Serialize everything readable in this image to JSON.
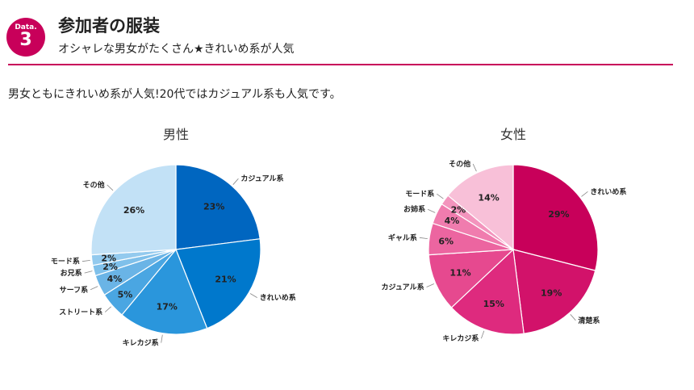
{
  "header": {
    "badge_label": "Data.",
    "badge_number": "3",
    "title": "参加者の服装",
    "subtitle": "オシャレな男女がたくさん★きれいめ系が人気"
  },
  "summary": "男女ともにきれいめ系が人気!20代ではカジュアル系も人気です。",
  "chart_data": [
    {
      "type": "pie",
      "title": "男性",
      "slices": [
        {
          "label": "カジュアル系",
          "value": 23,
          "color": "#0066c0"
        },
        {
          "label": "きれいめ系",
          "value": 21,
          "color": "#0078cc"
        },
        {
          "label": "キレカジ系",
          "value": 17,
          "color": "#2a96dc"
        },
        {
          "label": "ストリート系",
          "value": 5,
          "color": "#4aa6e2"
        },
        {
          "label": "サーフ系",
          "value": 4,
          "color": "#6ab4e6"
        },
        {
          "label": "お兄系",
          "value": 2,
          "color": "#7fc0ea"
        },
        {
          "label": "モード系",
          "value": 2,
          "color": "#93caee"
        },
        {
          "label": "その他",
          "value": 26,
          "color": "#c2e1f6"
        }
      ],
      "value_suffix": "%"
    },
    {
      "type": "pie",
      "title": "女性",
      "slices": [
        {
          "label": "きれいめ系",
          "value": 29,
          "color": "#c8005a"
        },
        {
          "label": "清楚系",
          "value": 19,
          "color": "#d2126a"
        },
        {
          "label": "キレカジ系",
          "value": 15,
          "color": "#de2a7e"
        },
        {
          "label": "カジュアル系",
          "value": 11,
          "color": "#e6498f"
        },
        {
          "label": "ギャル系",
          "value": 6,
          "color": "#ec65a0"
        },
        {
          "label": "お姉系",
          "value": 4,
          "color": "#f07cae"
        },
        {
          "label": "モード系",
          "value": 2,
          "color": "#f394bd"
        },
        {
          "label": "その他",
          "value": 14,
          "color": "#f8c0d8"
        }
      ],
      "value_suffix": "%"
    }
  ]
}
